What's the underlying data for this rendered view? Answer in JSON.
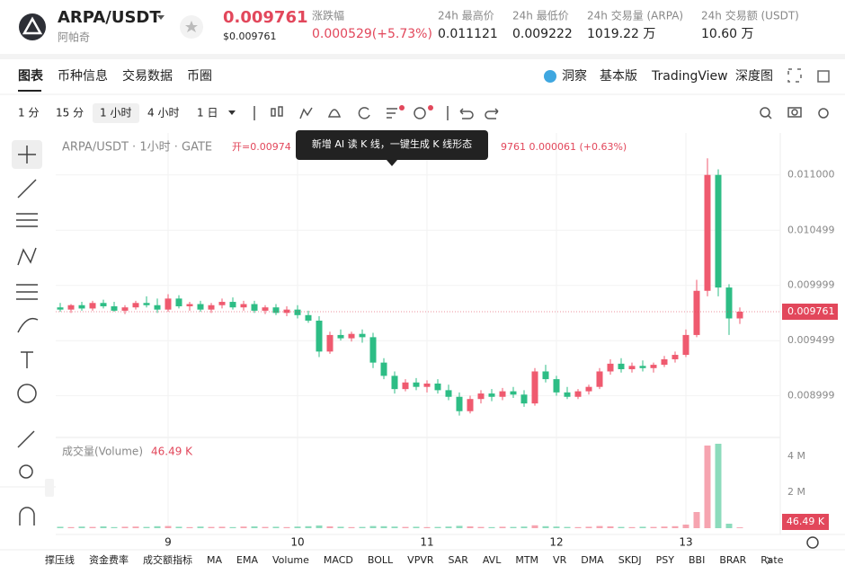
{
  "header": {
    "symbol": "ARPA/USDT",
    "name": "阿帕奇",
    "price": "0.009761",
    "price_usd": "$0.009761",
    "stats": [
      {
        "label": "涨跌幅",
        "value": "0.000529(+5.73%)"
      },
      {
        "label": "24h 最高价",
        "value": "0.011121"
      },
      {
        "label": "24h 最低价",
        "value": "0.009222"
      },
      {
        "label": "24h 交易量 (ARPA)",
        "value": "1019.22 万"
      },
      {
        "label": "24h 交易额 (USDT)",
        "value": "10.60 万"
      }
    ]
  },
  "tabs": [
    "图表",
    "币种信息",
    "交易数据",
    "币圈"
  ],
  "right_tabs": [
    "洞察",
    "基本版",
    "TradingView",
    "深度图"
  ],
  "intervals": [
    "1 分",
    "15 分",
    "1 小时",
    "4 小时",
    "1 日"
  ],
  "legend": {
    "title": "ARPA/USDT · 1小时 · GATE",
    "open": "开=0.00974",
    "tail": "9761  0.000061 (+0.63%)"
  },
  "tooltip": "新增 AI 读 K 线，一键生成 K 线形态",
  "volume_legend": {
    "label": "成交量(Volume)",
    "value": "46.49 K"
  },
  "indicators": [
    "撑压线",
    "资金费率",
    "成交额指标",
    "MA",
    "EMA",
    "Volume",
    "MACD",
    "BOLL",
    "VPVR",
    "SAR",
    "AVL",
    "MTM",
    "VR",
    "DMA",
    "SKDJ",
    "PSY",
    "BBI",
    "BRAR",
    "Rate"
  ],
  "chart_data": {
    "type": "candlestick",
    "up_color": "#ef5a6f",
    "down_color": "#2dbd85",
    "grid": true,
    "categories": [
      null,
      null,
      null,
      null,
      null,
      null,
      null,
      null,
      null,
      null,
      "9",
      null,
      null,
      null,
      null,
      null,
      null,
      null,
      null,
      null,
      null,
      null,
      "10",
      null,
      null,
      null,
      null,
      null,
      null,
      null,
      null,
      null,
      null,
      null,
      "11",
      null,
      null,
      null,
      null,
      null,
      null,
      null,
      null,
      null,
      null,
      null,
      "12",
      null,
      null,
      null,
      null,
      null,
      null,
      null,
      null,
      null,
      null,
      null,
      "13",
      null,
      null,
      null,
      null,
      null
    ],
    "open": [
      0.0098,
      0.00978,
      0.00982,
      0.00979,
      0.00984,
      0.00981,
      0.00977,
      0.0098,
      0.00984,
      0.00982,
      0.00978,
      0.00988,
      0.00981,
      0.00983,
      0.00978,
      0.00982,
      0.00985,
      0.0098,
      0.00983,
      0.00977,
      0.0098,
      0.00975,
      0.00978,
      0.00973,
      0.00968,
      0.0094,
      0.00955,
      0.00952,
      0.00956,
      0.00953,
      0.0093,
      0.00918,
      0.00906,
      0.00912,
      0.00908,
      0.00911,
      0.00905,
      0.00899,
      0.00886,
      0.00897,
      0.00902,
      0.00899,
      0.00904,
      0.00901,
      0.00893,
      0.00922,
      0.00915,
      0.00903,
      0.00899,
      0.00904,
      0.00908,
      0.00922,
      0.00929,
      0.00924,
      0.00927,
      0.00925,
      0.00928,
      0.00933,
      0.00937,
      0.00955,
      0.00995,
      0.011,
      0.00998,
      0.0097
    ],
    "high": [
      0.00984,
      0.00983,
      0.00985,
      0.00986,
      0.00987,
      0.00985,
      0.00982,
      0.00986,
      0.0099,
      0.00988,
      0.00992,
      0.00991,
      0.00985,
      0.00986,
      0.00984,
      0.00988,
      0.00989,
      0.00986,
      0.00986,
      0.00982,
      0.00983,
      0.00981,
      0.00982,
      0.00977,
      0.00972,
      0.00958,
      0.0096,
      0.00958,
      0.0096,
      0.00957,
      0.00934,
      0.00922,
      0.00915,
      0.00916,
      0.00914,
      0.00915,
      0.0091,
      0.00903,
      0.009,
      0.00905,
      0.00906,
      0.00907,
      0.00908,
      0.00905,
      0.00925,
      0.00928,
      0.00918,
      0.00908,
      0.00906,
      0.0091,
      0.00925,
      0.00933,
      0.00934,
      0.0093,
      0.00932,
      0.0093,
      0.00936,
      0.0094,
      0.0096,
      0.01005,
      0.01115,
      0.01105,
      0.01001,
      0.0098
    ],
    "low": [
      0.00976,
      0.00975,
      0.00977,
      0.00977,
      0.00979,
      0.00976,
      0.00974,
      0.00978,
      0.0098,
      0.00975,
      0.00976,
      0.00979,
      0.00977,
      0.00976,
      0.00975,
      0.00979,
      0.00978,
      0.00977,
      0.00975,
      0.00974,
      0.00973,
      0.00972,
      0.0097,
      0.00966,
      0.00935,
      0.00938,
      0.0095,
      0.00949,
      0.00948,
      0.00925,
      0.00915,
      0.00902,
      0.00904,
      0.00905,
      0.00903,
      0.00902,
      0.00896,
      0.00882,
      0.00884,
      0.00893,
      0.00895,
      0.00896,
      0.00898,
      0.0089,
      0.00891,
      0.00912,
      0.009,
      0.00897,
      0.00897,
      0.00901,
      0.00906,
      0.00919,
      0.00921,
      0.00921,
      0.00922,
      0.00921,
      0.00926,
      0.0093,
      0.00935,
      0.00953,
      0.0099,
      0.0099,
      0.00955,
      0.00965
    ],
    "close": [
      0.00978,
      0.00982,
      0.00979,
      0.00984,
      0.00981,
      0.00977,
      0.0098,
      0.00984,
      0.00982,
      0.00978,
      0.00988,
      0.00981,
      0.00983,
      0.00978,
      0.00982,
      0.00985,
      0.0098,
      0.00983,
      0.00977,
      0.0098,
      0.00975,
      0.00978,
      0.00973,
      0.00968,
      0.0094,
      0.00955,
      0.00952,
      0.00956,
      0.00953,
      0.0093,
      0.00918,
      0.00906,
      0.00912,
      0.00908,
      0.00911,
      0.00905,
      0.00899,
      0.00886,
      0.00897,
      0.00902,
      0.00899,
      0.00904,
      0.00901,
      0.00893,
      0.00922,
      0.00915,
      0.00903,
      0.00899,
      0.00904,
      0.00908,
      0.00922,
      0.00929,
      0.00924,
      0.00927,
      0.00925,
      0.00928,
      0.00933,
      0.00937,
      0.00955,
      0.00995,
      0.011,
      0.00998,
      0.0097,
      0.009761
    ],
    "ylim": [
      0.00863,
      0.01138
    ],
    "yticks": [
      {
        "value": 0.011,
        "label": "0.011000"
      },
      0.010499,
      0.009999,
      0.009499,
      0.008999
    ],
    "volume": [
      80000,
      60000,
      90000,
      70000,
      100000,
      60000,
      80000,
      90000,
      70000,
      110000,
      120000,
      80000,
      60000,
      90000,
      70000,
      80000,
      60000,
      90000,
      100000,
      70000,
      80000,
      60000,
      90000,
      110000,
      150000,
      100000,
      80000,
      60000,
      70000,
      120000,
      110000,
      90000,
      70000,
      80000,
      60000,
      70000,
      90000,
      130000,
      100000,
      70000,
      60000,
      80000,
      70000,
      90000,
      160000,
      110000,
      90000,
      70000,
      60000,
      80000,
      120000,
      100000,
      70000,
      60000,
      80000,
      70000,
      90000,
      110000,
      200000,
      900000,
      4600000,
      4700000,
      250000,
      46490
    ],
    "volume_ylim": [
      0,
      4900000
    ],
    "volume_ticks": [
      {
        "value": 4000000,
        "label": "4 M"
      },
      {
        "value": 2000000,
        "label": "2 M"
      }
    ]
  }
}
